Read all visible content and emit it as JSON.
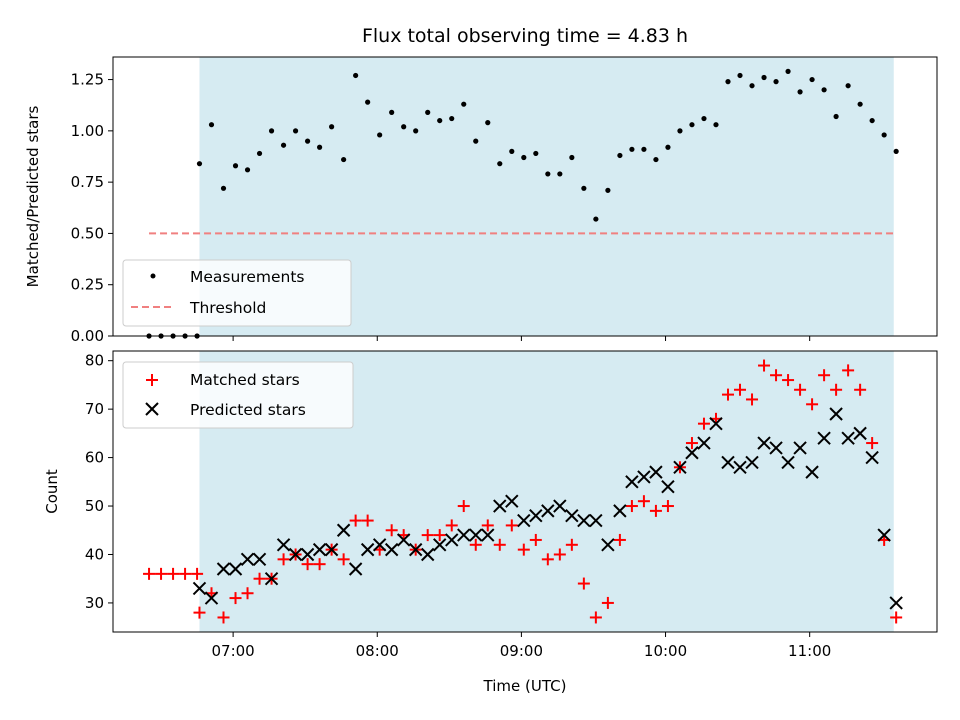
{
  "chart_data": [
    {
      "type": "scatter",
      "title": "Flux total observing time = 4.83 h",
      "ylabel": "Matched/Predicted stars",
      "xlim": [
        "06:10",
        "11:53"
      ],
      "ylim": [
        0,
        1.36
      ],
      "y_ticks": [
        0.0,
        0.25,
        0.5,
        0.75,
        1.0,
        1.25
      ],
      "y_tick_labels": [
        "0.00",
        "0.25",
        "0.50",
        "0.75",
        "1.00",
        "1.25"
      ],
      "shaded_x_range": [
        "06:46",
        "11:35"
      ],
      "shade_color": "#add8e6",
      "legend": {
        "position": "lower-left",
        "entries": [
          "Measurements",
          "Threshold"
        ]
      },
      "threshold": {
        "name": "Threshold",
        "value": 0.5,
        "x_range": [
          "06:25",
          "11:35"
        ],
        "color": "#f08080"
      },
      "series": [
        {
          "name": "Measurements",
          "color": "#000000",
          "points": [
            [
              "06:25",
              0.0
            ],
            [
              "06:30",
              0.0
            ],
            [
              "06:35",
              0.0
            ],
            [
              "06:40",
              0.0
            ],
            [
              "06:45",
              0.0
            ],
            [
              "06:46",
              0.84
            ],
            [
              "06:51",
              1.03
            ],
            [
              "06:56",
              0.72
            ],
            [
              "07:01",
              0.83
            ],
            [
              "07:06",
              0.81
            ],
            [
              "07:11",
              0.89
            ],
            [
              "07:16",
              1.0
            ],
            [
              "07:21",
              0.93
            ],
            [
              "07:26",
              1.0
            ],
            [
              "07:31",
              0.95
            ],
            [
              "07:36",
              0.92
            ],
            [
              "07:41",
              1.02
            ],
            [
              "07:46",
              0.86
            ],
            [
              "07:51",
              1.27
            ],
            [
              "07:56",
              1.14
            ],
            [
              "08:01",
              0.98
            ],
            [
              "08:06",
              1.09
            ],
            [
              "08:11",
              1.02
            ],
            [
              "08:16",
              1.0
            ],
            [
              "08:21",
              1.09
            ],
            [
              "08:26",
              1.05
            ],
            [
              "08:31",
              1.06
            ],
            [
              "08:36",
              1.13
            ],
            [
              "08:41",
              0.95
            ],
            [
              "08:46",
              1.04
            ],
            [
              "08:51",
              0.84
            ],
            [
              "08:56",
              0.9
            ],
            [
              "09:01",
              0.87
            ],
            [
              "09:06",
              0.89
            ],
            [
              "09:11",
              0.79
            ],
            [
              "09:16",
              0.79
            ],
            [
              "09:21",
              0.87
            ],
            [
              "09:26",
              0.72
            ],
            [
              "09:31",
              0.57
            ],
            [
              "09:36",
              0.71
            ],
            [
              "09:41",
              0.88
            ],
            [
              "09:46",
              0.91
            ],
            [
              "09:51",
              0.91
            ],
            [
              "09:56",
              0.86
            ],
            [
              "10:01",
              0.92
            ],
            [
              "10:06",
              1.0
            ],
            [
              "10:11",
              1.03
            ],
            [
              "10:16",
              1.06
            ],
            [
              "10:21",
              1.03
            ],
            [
              "10:26",
              1.24
            ],
            [
              "10:31",
              1.27
            ],
            [
              "10:36",
              1.22
            ],
            [
              "10:41",
              1.26
            ],
            [
              "10:46",
              1.24
            ],
            [
              "10:51",
              1.29
            ],
            [
              "10:56",
              1.19
            ],
            [
              "11:01",
              1.25
            ],
            [
              "11:06",
              1.2
            ],
            [
              "11:11",
              1.07
            ],
            [
              "11:16",
              1.22
            ],
            [
              "11:21",
              1.13
            ],
            [
              "11:26",
              1.05
            ],
            [
              "11:31",
              0.98
            ],
            [
              "11:36",
              0.9
            ]
          ]
        }
      ]
    },
    {
      "type": "scatter",
      "xlabel": "Time (UTC)",
      "ylabel": "Count",
      "xlim": [
        "06:10",
        "11:53"
      ],
      "ylim": [
        24,
        82
      ],
      "x_ticks": [
        "07:00",
        "08:00",
        "09:00",
        "10:00",
        "11:00"
      ],
      "x_tick_labels": [
        "07:00",
        "08:00",
        "09:00",
        "10:00",
        "11:00"
      ],
      "y_ticks": [
        30,
        40,
        50,
        60,
        70,
        80
      ],
      "y_tick_labels": [
        "30",
        "40",
        "50",
        "60",
        "70",
        "80"
      ],
      "shaded_x_range": [
        "06:46",
        "11:35"
      ],
      "shade_color": "#add8e6",
      "legend": {
        "position": "upper-left",
        "entries": [
          "Matched stars",
          "Predicted stars"
        ]
      },
      "series": [
        {
          "name": "Matched stars",
          "marker": "plus",
          "color": "#ff0000",
          "points": [
            [
              "06:25",
              36
            ],
            [
              "06:30",
              36
            ],
            [
              "06:35",
              36
            ],
            [
              "06:40",
              36
            ],
            [
              "06:45",
              36
            ],
            [
              "06:46",
              28
            ],
            [
              "06:51",
              32
            ],
            [
              "06:56",
              27
            ],
            [
              "07:01",
              31
            ],
            [
              "07:06",
              32
            ],
            [
              "07:11",
              35
            ],
            [
              "07:16",
              35
            ],
            [
              "07:21",
              39
            ],
            [
              "07:26",
              40
            ],
            [
              "07:31",
              38
            ],
            [
              "07:36",
              38
            ],
            [
              "07:41",
              41
            ],
            [
              "07:46",
              39
            ],
            [
              "07:51",
              47
            ],
            [
              "07:56",
              47
            ],
            [
              "08:01",
              41
            ],
            [
              "08:06",
              45
            ],
            [
              "08:11",
              44
            ],
            [
              "08:16",
              41
            ],
            [
              "08:21",
              44
            ],
            [
              "08:26",
              44
            ],
            [
              "08:31",
              46
            ],
            [
              "08:36",
              50
            ],
            [
              "08:41",
              42
            ],
            [
              "08:46",
              46
            ],
            [
              "08:51",
              42
            ],
            [
              "08:56",
              46
            ],
            [
              "09:01",
              41
            ],
            [
              "09:06",
              43
            ],
            [
              "09:11",
              39
            ],
            [
              "09:16",
              40
            ],
            [
              "09:21",
              42
            ],
            [
              "09:26",
              34
            ],
            [
              "09:31",
              27
            ],
            [
              "09:36",
              30
            ],
            [
              "09:41",
              43
            ],
            [
              "09:46",
              50
            ],
            [
              "09:51",
              51
            ],
            [
              "09:56",
              49
            ],
            [
              "10:01",
              50
            ],
            [
              "10:06",
              58
            ],
            [
              "10:11",
              63
            ],
            [
              "10:16",
              67
            ],
            [
              "10:21",
              68
            ],
            [
              "10:26",
              73
            ],
            [
              "10:31",
              74
            ],
            [
              "10:36",
              72
            ],
            [
              "10:41",
              79
            ],
            [
              "10:46",
              77
            ],
            [
              "10:51",
              76
            ],
            [
              "10:56",
              74
            ],
            [
              "11:01",
              71
            ],
            [
              "11:06",
              77
            ],
            [
              "11:11",
              74
            ],
            [
              "11:16",
              78
            ],
            [
              "11:21",
              74
            ],
            [
              "11:26",
              63
            ],
            [
              "11:31",
              43
            ],
            [
              "11:36",
              27
            ]
          ]
        },
        {
          "name": "Predicted stars",
          "marker": "x",
          "color": "#000000",
          "points": [
            [
              "06:46",
              33
            ],
            [
              "06:51",
              31
            ],
            [
              "06:56",
              37
            ],
            [
              "07:01",
              37
            ],
            [
              "07:06",
              39
            ],
            [
              "07:11",
              39
            ],
            [
              "07:16",
              35
            ],
            [
              "07:21",
              42
            ],
            [
              "07:26",
              40
            ],
            [
              "07:31",
              40
            ],
            [
              "07:36",
              41
            ],
            [
              "07:41",
              41
            ],
            [
              "07:46",
              45
            ],
            [
              "07:51",
              37
            ],
            [
              "07:56",
              41
            ],
            [
              "08:01",
              42
            ],
            [
              "08:06",
              41
            ],
            [
              "08:11",
              43
            ],
            [
              "08:16",
              41
            ],
            [
              "08:21",
              40
            ],
            [
              "08:26",
              42
            ],
            [
              "08:31",
              43
            ],
            [
              "08:36",
              44
            ],
            [
              "08:41",
              44
            ],
            [
              "08:46",
              44
            ],
            [
              "08:51",
              50
            ],
            [
              "08:56",
              51
            ],
            [
              "09:01",
              47
            ],
            [
              "09:06",
              48
            ],
            [
              "09:11",
              49
            ],
            [
              "09:16",
              50
            ],
            [
              "09:21",
              48
            ],
            [
              "09:26",
              47
            ],
            [
              "09:31",
              47
            ],
            [
              "09:36",
              42
            ],
            [
              "09:41",
              49
            ],
            [
              "09:46",
              55
            ],
            [
              "09:51",
              56
            ],
            [
              "09:56",
              57
            ],
            [
              "10:01",
              54
            ],
            [
              "10:06",
              58
            ],
            [
              "10:11",
              61
            ],
            [
              "10:16",
              63
            ],
            [
              "10:21",
              67
            ],
            [
              "10:26",
              59
            ],
            [
              "10:31",
              58
            ],
            [
              "10:36",
              59
            ],
            [
              "10:41",
              63
            ],
            [
              "10:46",
              62
            ],
            [
              "10:51",
              59
            ],
            [
              "10:56",
              62
            ],
            [
              "11:01",
              57
            ],
            [
              "11:06",
              64
            ],
            [
              "11:11",
              69
            ],
            [
              "11:16",
              64
            ],
            [
              "11:21",
              65
            ],
            [
              "11:26",
              60
            ],
            [
              "11:31",
              44
            ],
            [
              "11:36",
              30
            ]
          ]
        }
      ]
    }
  ]
}
